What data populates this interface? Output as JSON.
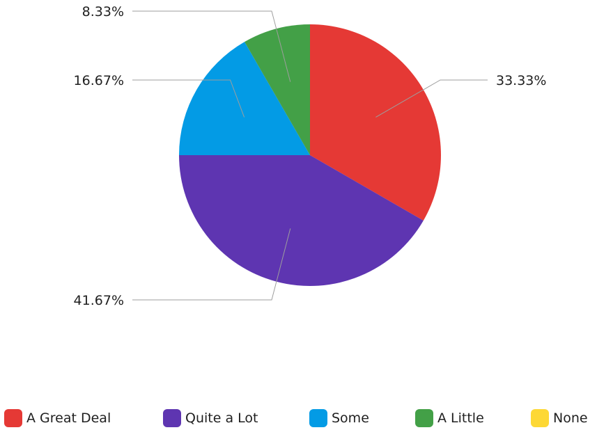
{
  "chart_data": {
    "type": "pie",
    "title": "",
    "categories": [
      "A Great Deal",
      "Quite a Lot",
      "Some",
      "A Little",
      "None"
    ],
    "values": [
      33.33,
      41.67,
      16.67,
      8.33,
      0
    ],
    "value_labels": [
      "33.33%",
      "41.67%",
      "16.67%",
      "8.33%",
      ""
    ],
    "colors": [
      "#e53935",
      "#5e35b1",
      "#039be5",
      "#43a047",
      "#fdd835"
    ],
    "start_angle": "12 o'clock",
    "direction": "clockwise",
    "legend_position": "bottom"
  }
}
